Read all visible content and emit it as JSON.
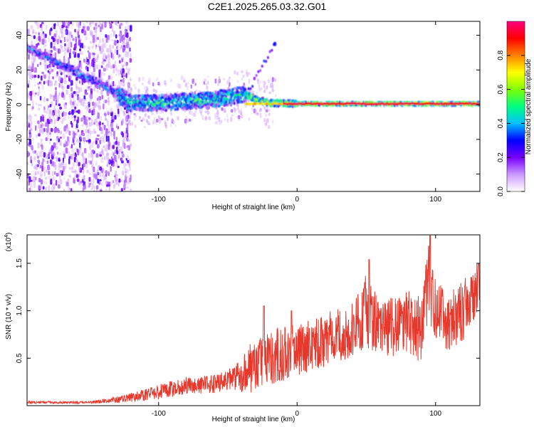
{
  "title": "C2E1.2025.265.03.32.G01",
  "chart_data": [
    {
      "type": "heatmap",
      "xlabel": "Height of straight line (km)",
      "ylabel": "Frequency (Hz)",
      "xlim": [
        -195,
        132
      ],
      "ylim": [
        -50,
        48
      ],
      "xticks": [
        -100,
        0,
        100
      ],
      "xtick_labels": [
        "-100",
        "0",
        "100"
      ],
      "yticks": [
        -40,
        -20,
        0,
        20,
        40
      ],
      "ytick_labels": [
        "-40",
        "-20",
        "0",
        "20",
        "40"
      ],
      "description": "Spectrogram: a descending track from about 33 Hz at -195 km to about 0 Hz near -125 km, then a bright band near 0-5 Hz to -37 km, then a narrow strong line at 0 Hz through 130 km; scattered weak noise below -125 km; short rising streak near -35 to -15 km.",
      "ridge": {
        "x": [
          -195,
          -180,
          -165,
          -150,
          -140,
          -130,
          -120,
          -100,
          -80,
          -60,
          -45,
          -38,
          -30,
          -20,
          0,
          50,
          100,
          130
        ],
        "y": [
          33,
          27,
          21,
          15,
          11,
          6,
          1,
          1,
          2,
          3,
          5,
          6,
          3,
          1,
          0.5,
          0.5,
          0.5,
          0.5
        ]
      },
      "colorbar": {
        "label": "Normalized spectral amplitude",
        "range": [
          0,
          1
        ],
        "ticks": [
          0.0,
          0.2,
          0.4,
          0.6,
          0.8
        ],
        "tick_labels": [
          "0.0",
          "0.2",
          "0.4",
          "0.6",
          "0.8"
        ],
        "colors": [
          "#ffffff",
          "#cc99ff",
          "#7700ff",
          "#0000ff",
          "#00c0ff",
          "#00ff80",
          "#80ff00",
          "#ffff00",
          "#ff8000",
          "#ff0000",
          "#ff0080"
        ]
      }
    },
    {
      "type": "line",
      "xlabel": "Height of straight line (km)",
      "ylabel": "SNR (10 * v/v)",
      "multiplier": "(x10",
      "multiplier_exp": "4",
      "xlim": [
        -195,
        132
      ],
      "ylim": [
        0,
        18000
      ],
      "xticks": [
        -100,
        0,
        100
      ],
      "xtick_labels": [
        "-100",
        "0",
        "100"
      ],
      "yticks": [
        5000,
        10000,
        15000
      ],
      "ytick_labels": [
        "0.5",
        "1.0",
        "1.5"
      ],
      "color": "#e8382c",
      "envelope": {
        "x": [
          -195,
          -150,
          -125,
          -100,
          -80,
          -60,
          -45,
          -35,
          -25,
          -15,
          0,
          20,
          40,
          50,
          60,
          80,
          90,
          95,
          100,
          110,
          120,
          132
        ],
        "base": [
          300,
          300,
          600,
          1200,
          1800,
          2000,
          2500,
          3000,
          4000,
          4500,
          5000,
          6000,
          7000,
          9000,
          7000,
          8000,
          7000,
          12000,
          9000,
          8000,
          9000,
          12000
        ],
        "amp": [
          200,
          200,
          600,
          1200,
          1500,
          1500,
          2000,
          4000,
          4000,
          5000,
          4000,
          4500,
          4500,
          6000,
          5000,
          5000,
          6000,
          6000,
          5000,
          5000,
          5000,
          4000
        ]
      },
      "peaks": [
        {
          "x": -24,
          "y": 10500
        },
        {
          "x": -4,
          "y": 10000
        },
        {
          "x": 52,
          "y": 15400
        },
        {
          "x": 96,
          "y": 17900
        },
        {
          "x": 131,
          "y": 15000
        }
      ]
    }
  ]
}
